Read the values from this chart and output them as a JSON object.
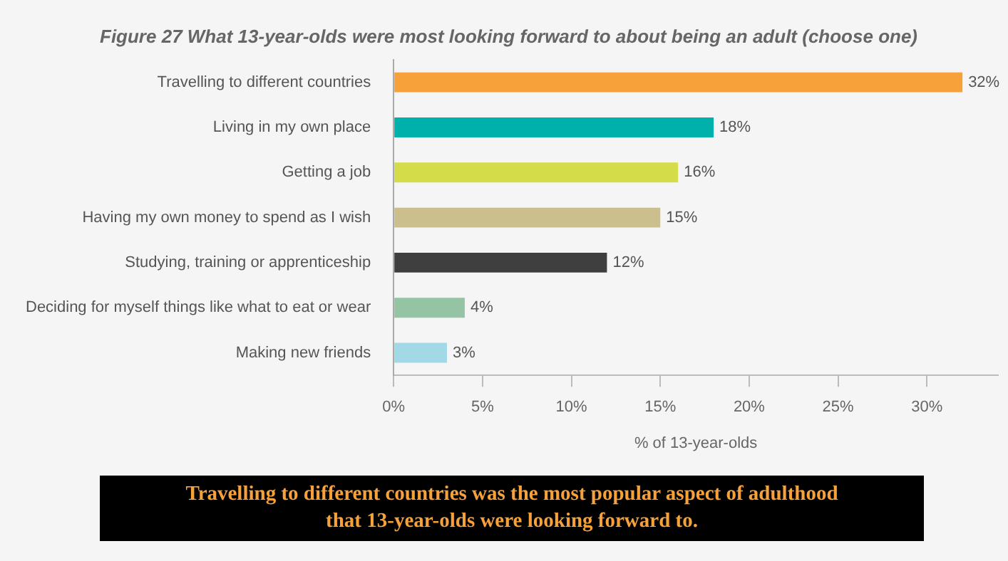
{
  "chart_data": {
    "type": "bar",
    "orientation": "horizontal",
    "title": "Figure 27 What 13-year-olds were most looking forward to about being an adult (choose one)",
    "xlabel": "% of 13-year-olds",
    "categories": [
      "Travelling to different countries",
      "Living in my own place",
      "Getting a job",
      "Having my own money to spend as I wish",
      "Studying, training or apprenticeship",
      "Deciding for myself things like what to eat or wear",
      "Making new friends"
    ],
    "values": [
      32,
      18,
      16,
      15,
      12,
      4,
      3
    ],
    "colors": [
      "#f7a13a",
      "#00b0aa",
      "#d4dc4a",
      "#cbbf8d",
      "#3f3f3f",
      "#95c4a5",
      "#a2d9e6"
    ],
    "value_labels": [
      "32%",
      "18%",
      "16%",
      "15%",
      "12%",
      "4%",
      "3%"
    ],
    "xlim": [
      0,
      34
    ],
    "xticks": [
      {
        "value": 0,
        "label": "0%"
      },
      {
        "value": 5,
        "label": "5%"
      },
      {
        "value": 10,
        "label": "10%"
      },
      {
        "value": 15,
        "label": "15%"
      },
      {
        "value": 20,
        "label": "20%"
      },
      {
        "value": 25,
        "label": "25%"
      },
      {
        "value": 30,
        "label": "30%"
      }
    ],
    "grid": false,
    "legend": false,
    "annotations": [
      "Travelling to different countries was the most popular aspect of adulthood that 13-year-olds were looking forward to."
    ]
  }
}
